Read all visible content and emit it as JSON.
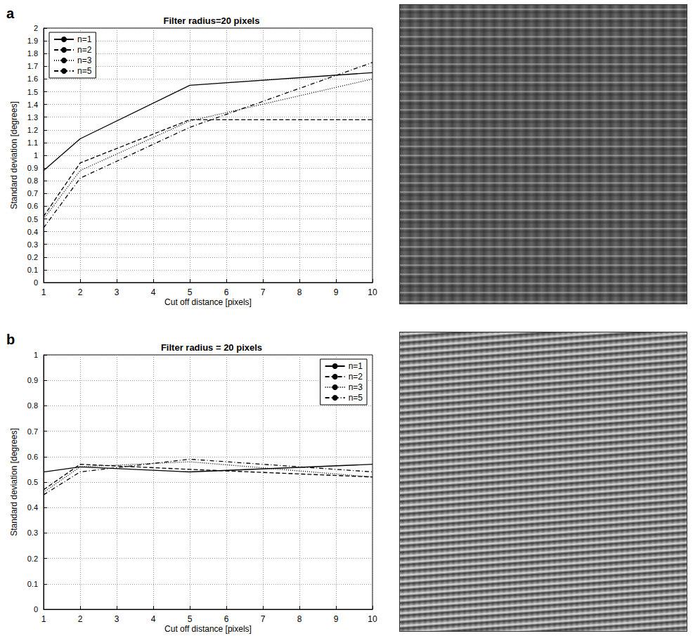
{
  "chart_data": [
    {
      "type": "line",
      "panel_label": "a",
      "title": "Filter radius=20 pixels",
      "xlabel": "Cut off distance [pixels]",
      "ylabel": "Standard deviation [degrees]",
      "x": [
        1,
        2,
        5,
        10
      ],
      "series": [
        {
          "name": "n=1",
          "color": "#000000",
          "line_style": "solid",
          "values": [
            0.88,
            1.13,
            1.55,
            1.65
          ]
        },
        {
          "name": "n=2",
          "color": "#000000",
          "line_style": "dashed",
          "values": [
            0.52,
            0.94,
            1.28,
            1.28
          ]
        },
        {
          "name": "n=3",
          "color": "#000000",
          "line_style": "dotted",
          "values": [
            0.5,
            0.88,
            1.27,
            1.6
          ]
        },
        {
          "name": "n=5",
          "color": "#000000",
          "line_style": "dashdot",
          "values": [
            0.43,
            0.82,
            1.22,
            1.73
          ]
        }
      ],
      "xlim": [
        1,
        10
      ],
      "xticks": [
        1,
        2,
        3,
        4,
        5,
        6,
        7,
        8,
        9,
        10
      ],
      "ylim": [
        0,
        2
      ],
      "yticks": [
        0,
        0.1,
        0.2,
        0.3,
        0.4,
        0.5,
        0.6,
        0.7,
        0.8,
        0.9,
        1,
        1.1,
        1.2,
        1.3,
        1.4,
        1.5,
        1.6,
        1.7,
        1.8,
        1.9,
        2
      ],
      "grid": true,
      "legend": "upper left"
    },
    {
      "type": "line",
      "panel_label": "b",
      "title": "Filter radius = 20 pixels",
      "xlabel": "Cut off distance [pixels]",
      "ylabel": "Standard deviation [degrees]",
      "x": [
        1,
        2,
        5,
        10
      ],
      "series": [
        {
          "name": "n=1",
          "color": "#000000",
          "line_style": "solid",
          "values": [
            0.54,
            0.56,
            0.54,
            0.57
          ]
        },
        {
          "name": "n=2",
          "color": "#000000",
          "line_style": "dashed",
          "values": [
            0.47,
            0.57,
            0.55,
            0.52
          ]
        },
        {
          "name": "n=3",
          "color": "#000000",
          "line_style": "dotted",
          "values": [
            0.46,
            0.56,
            0.58,
            0.52
          ]
        },
        {
          "name": "n=5",
          "color": "#000000",
          "line_style": "dashdot",
          "values": [
            0.45,
            0.54,
            0.59,
            0.54
          ]
        }
      ],
      "xlim": [
        1,
        10
      ],
      "xticks": [
        1,
        2,
        3,
        4,
        5,
        6,
        7,
        8,
        9,
        10
      ],
      "ylim": [
        0,
        1
      ],
      "yticks": [
        0,
        0.1,
        0.2,
        0.3,
        0.4,
        0.5,
        0.6,
        0.7,
        0.8,
        0.9,
        1
      ],
      "grid": true,
      "legend": "upper right"
    }
  ]
}
